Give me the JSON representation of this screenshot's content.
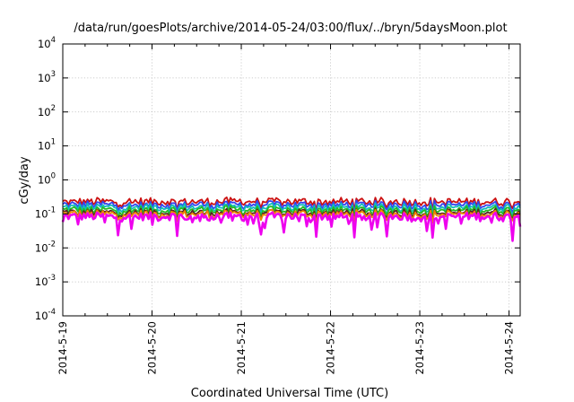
{
  "chart_data": {
    "type": "line",
    "title": "/data/run/goesPlots/archive/2014-05-24/03:00/flux/../bryn/5daysMoon.plot",
    "xlabel": "Coordinated Universal Time (UTC)",
    "ylabel": "cGy/day",
    "yscale": "log",
    "ylim": [
      0.0001,
      10000
    ],
    "y_ticks": [
      {
        "base": "10",
        "exp": "4",
        "value": 10000
      },
      {
        "base": "10",
        "exp": "3",
        "value": 1000
      },
      {
        "base": "10",
        "exp": "2",
        "value": 100
      },
      {
        "base": "10",
        "exp": "1",
        "value": 10
      },
      {
        "base": "10",
        "exp": "0",
        "value": 1
      },
      {
        "base": "10",
        "exp": "-1",
        "value": 0.1
      },
      {
        "base": "10",
        "exp": "-2",
        "value": 0.01
      },
      {
        "base": "10",
        "exp": "-3",
        "value": 0.001
      },
      {
        "base": "10",
        "exp": "-4",
        "value": 0.0001
      }
    ],
    "xlim": [
      "2014-05-19T00:00",
      "2014-05-24T03:00"
    ],
    "x_ticks": [
      "2014-5-19",
      "2014-5-20",
      "2014-5-21",
      "2014-5-22",
      "2014-5-23",
      "2014-5-24"
    ],
    "grid": true,
    "legend": "none",
    "series": [
      {
        "color": "#cc1111",
        "baseline": 0.22,
        "x_range": [
          "2014-05-19T00:00",
          "2014-05-24T03:00"
        ]
      },
      {
        "color": "#3344ee",
        "baseline": 0.18,
        "x_range": [
          "2014-05-19T00:00",
          "2014-05-24T03:00"
        ]
      },
      {
        "color": "#11bbbb",
        "baseline": 0.15,
        "x_range": [
          "2014-05-19T00:00",
          "2014-05-24T03:00"
        ]
      },
      {
        "color": "#22bb22",
        "baseline": 0.125,
        "x_range": [
          "2014-05-19T00:00",
          "2014-05-24T03:00"
        ]
      },
      {
        "color": "#552222",
        "baseline": 0.105,
        "x_range": [
          "2014-05-19T00:00",
          "2014-05-24T03:00"
        ]
      },
      {
        "color": "#ee8800",
        "baseline": 0.095,
        "x_range": [
          "2014-05-19T00:00",
          "2014-05-24T03:00"
        ]
      },
      {
        "color": "#ee00ee",
        "baseline": 0.08,
        "x_range": [
          "2014-05-19T00:00",
          "2014-05-24T03:00"
        ]
      }
    ]
  }
}
